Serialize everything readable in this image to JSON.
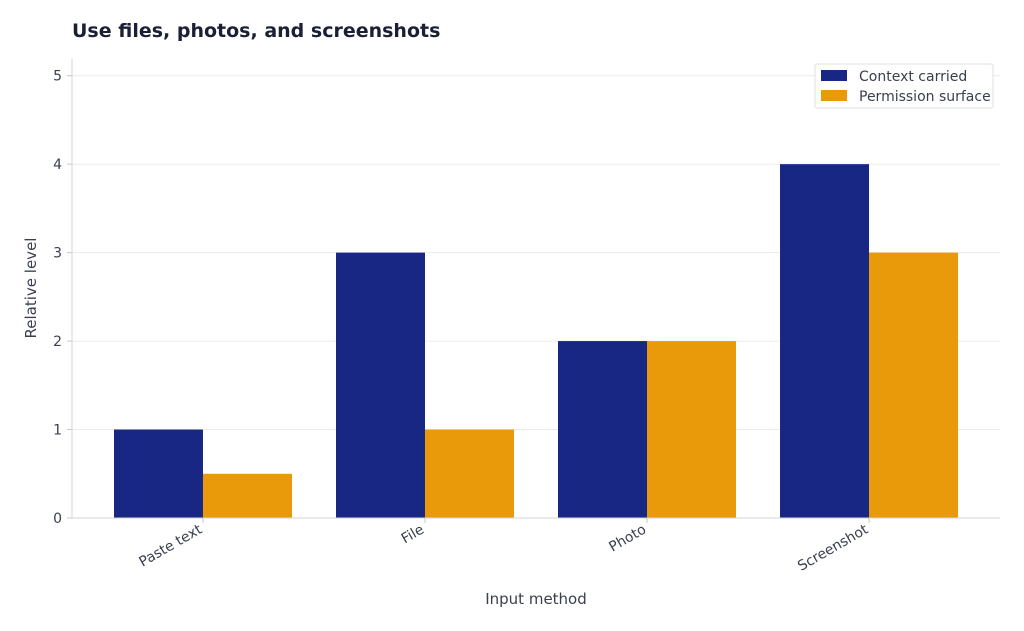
{
  "chart_data": {
    "type": "bar",
    "title": "Use files, photos, and screenshots",
    "xlabel": "Input method",
    "ylabel": "Relative level",
    "categories": [
      "Paste text",
      "File",
      "Photo",
      "Screenshot"
    ],
    "series": [
      {
        "name": "Context carried",
        "values": [
          1,
          3,
          2,
          4
        ],
        "color": "#172783"
      },
      {
        "name": "Permission surface",
        "values": [
          0.5,
          1,
          2,
          3
        ],
        "color": "#e89a0a"
      }
    ],
    "ylim": [
      0,
      5.2
    ],
    "yticks": [
      0,
      1,
      2,
      3,
      4,
      5
    ],
    "grid": true,
    "legend": "top-right"
  }
}
